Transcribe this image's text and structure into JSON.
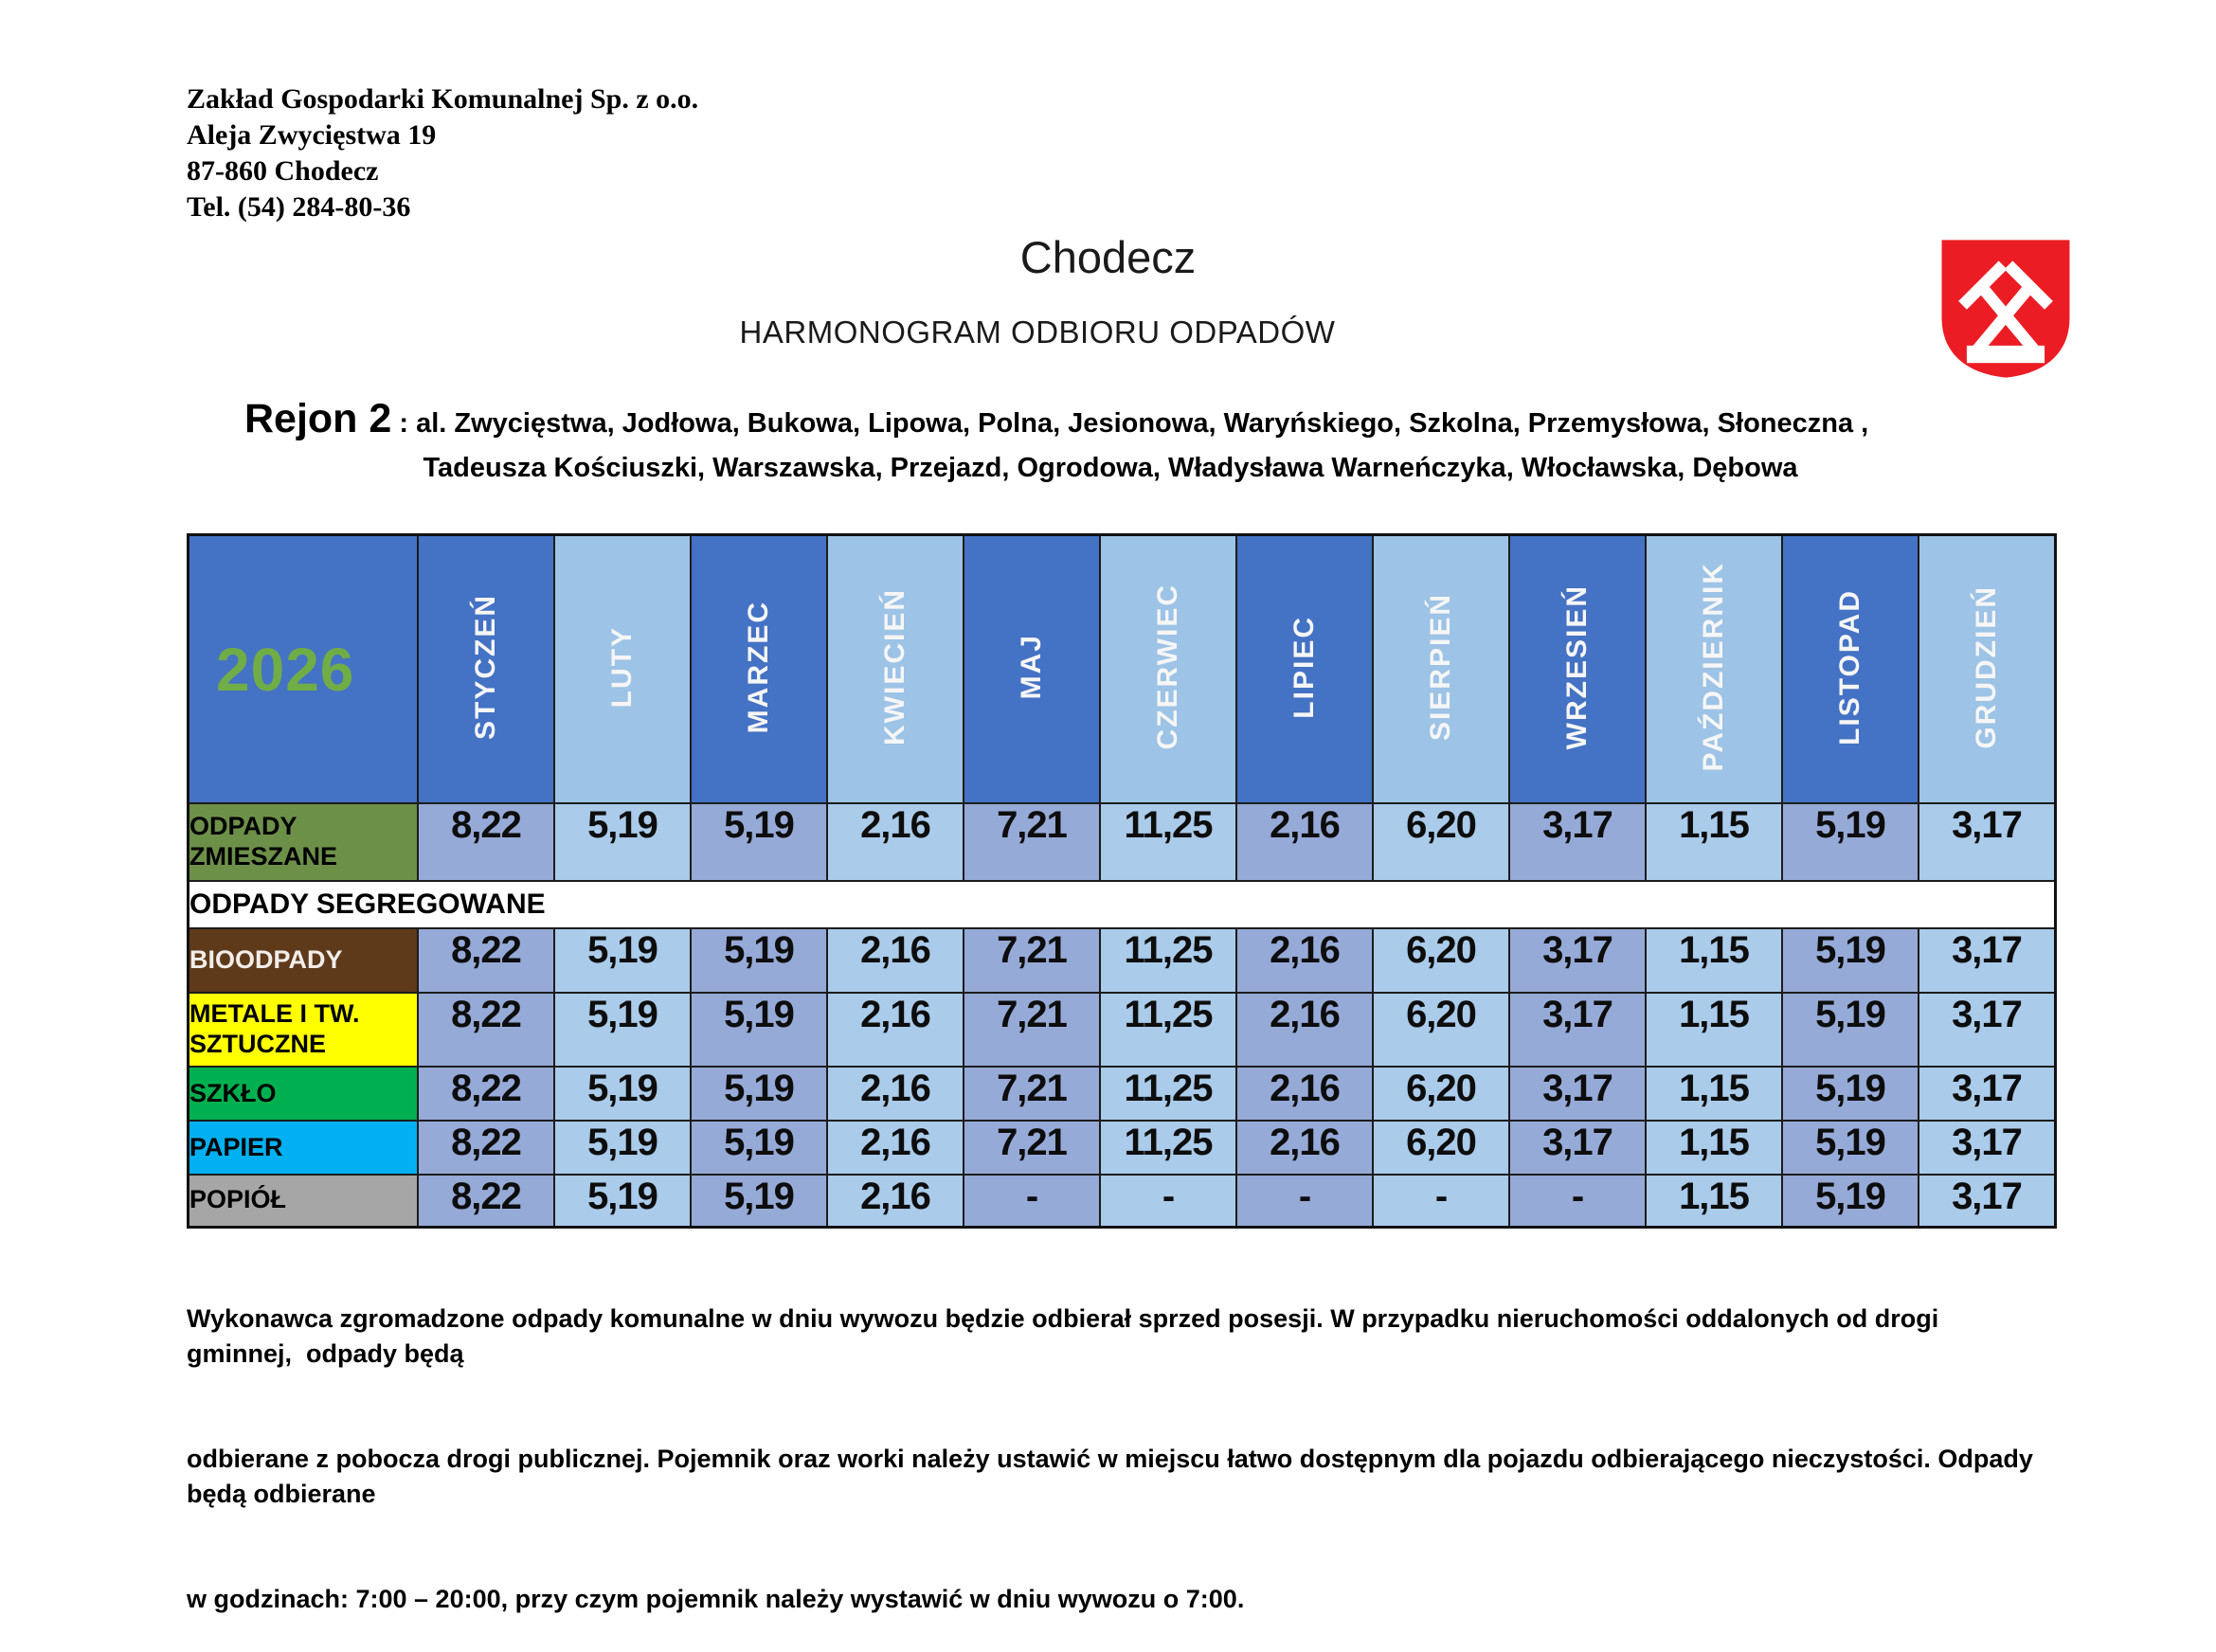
{
  "company": {
    "name": "Zakład Gospodarki Komunalnej Sp. z o.o.",
    "street": "Aleja Zwycięstwa 19",
    "city": "87-860 Chodecz",
    "phone": "Tel. (54) 284-80-36"
  },
  "header": {
    "city_title": "Chodecz",
    "subtitle": "HARMONOGRAM ODBIORU ODPADÓW"
  },
  "region": {
    "name": "Rejon 2",
    "streets_line1": " : al. Zwycięstwa, Jodłowa, Bukowa, Lipowa, Polna, Jesionowa, Waryńskiego, Szkolna, Przemysłowa, Słoneczna ,",
    "streets_line2": "Tadeusza Kościuszki, Warszawska, Przejazd, Ogrodowa, Władysława Warneńczyka, Włocławska, Dębowa"
  },
  "icons": {
    "coat_of_arms": "chodecz-coat-of-arms"
  },
  "colors": {
    "header_dark_blue": "#4472C4",
    "header_light_blue": "#9DC3E6",
    "cell_dark_blue": "#96AAD7",
    "cell_light_blue": "#AACBEA",
    "year_green": "#70AD47",
    "crest_red": "#EC1C24"
  },
  "calendar": {
    "year": "2026",
    "months": [
      "STYCZEŃ",
      "LUTY",
      "MARZEC",
      "KWIECIEŃ",
      "MAJ",
      "CZERWIEC",
      "LIPIEC",
      "SIERPIEŃ",
      "WRZESIEŃ",
      "PAŹDZIERNIK",
      "LISTOPAD",
      "GRUDZIEŃ"
    ],
    "rows": [
      {
        "label": "ODPADY ZMIESZANE",
        "bg": "#6D9049",
        "color": "#000000",
        "values": [
          "8,22",
          "5,19",
          "5,19",
          "2,16",
          "7,21",
          "11,25",
          "2,16",
          "6,20",
          "3,17",
          "1,15",
          "5,19",
          "3,17"
        ]
      },
      {
        "section": "ODPADY SEGREGOWANE"
      },
      {
        "label": "BIOODPADY",
        "bg": "#5E3A1B",
        "color": "#F2EDE9",
        "values": [
          "8,22",
          "5,19",
          "5,19",
          "2,16",
          "7,21",
          "11,25",
          "2,16",
          "6,20",
          "3,17",
          "1,15",
          "5,19",
          "3,17"
        ]
      },
      {
        "label": "METALE I TW. SZTUCZNE",
        "bg": "#FFFF00",
        "color": "#000000",
        "values": [
          "8,22",
          "5,19",
          "5,19",
          "2,16",
          "7,21",
          "11,25",
          "2,16",
          "6,20",
          "3,17",
          "1,15",
          "5,19",
          "3,17"
        ]
      },
      {
        "label": "SZKŁO",
        "bg": "#00B050",
        "color": "#000000",
        "values": [
          "8,22",
          "5,19",
          "5,19",
          "2,16",
          "7,21",
          "11,25",
          "2,16",
          "6,20",
          "3,17",
          "1,15",
          "5,19",
          "3,17"
        ]
      },
      {
        "label": "PAPIER",
        "bg": "#00B0F0",
        "color": "#000000",
        "values": [
          "8,22",
          "5,19",
          "5,19",
          "2,16",
          "7,21",
          "11,25",
          "2,16",
          "6,20",
          "3,17",
          "1,15",
          "5,19",
          "3,17"
        ]
      },
      {
        "label": "POPIÓŁ",
        "bg": "#A6A6A6",
        "color": "#000000",
        "values": [
          "8,22",
          "5,19",
          "5,19",
          "2,16",
          "-",
          "-",
          "-",
          "-",
          "-",
          "1,15",
          "5,19",
          "3,17"
        ]
      }
    ]
  },
  "footer": {
    "lines": [
      "Wykonawca zgromadzone odpady komunalne w dniu wywozu będzie odbierał sprzed posesji. W przypadku nieruchomości oddalonych od drogi gminnej,  odpady będą",
      "odbierane z pobocza drogi publicznej. Pojemnik oraz worki należy ustawić w miejscu łatwo dostępnym dla pojazdu odbierającego nieczystości. Odpady będą odbierane",
      "w godzinach: 7:00 – 20:00, przy czym pojemnik należy wystawić w dniu wywozu o 7:00."
    ]
  }
}
